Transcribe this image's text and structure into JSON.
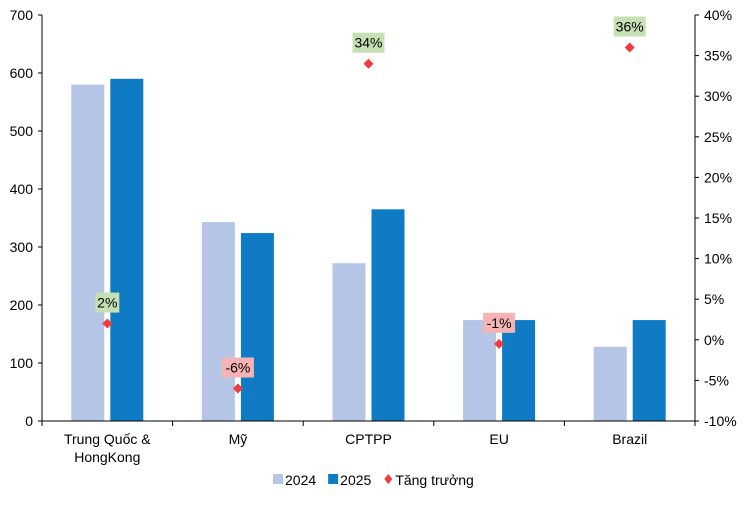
{
  "chart_data": {
    "type": "bar",
    "title": "",
    "categories": [
      "Trung Quốc & HongKong",
      "Mỹ",
      "CPTPP",
      "EU",
      "Brazil"
    ],
    "category_lines": [
      [
        "Trung Quốc &",
        "HongKong"
      ],
      [
        "Mỹ"
      ],
      [
        "CPTPP"
      ],
      [
        "EU"
      ],
      [
        "Brazil"
      ]
    ],
    "series": [
      {
        "name": "2024",
        "type": "bar",
        "axis": "left",
        "color": "#b4c5e6",
        "values": [
          580,
          343,
          272,
          174,
          128
        ]
      },
      {
        "name": "2025",
        "type": "bar",
        "axis": "left",
        "color": "#0f7bc4",
        "values": [
          590,
          324,
          365,
          174,
          174
        ]
      },
      {
        "name": "Tăng trưởng",
        "type": "scatter",
        "axis": "right",
        "color": "#f03c3c",
        "values": [
          2,
          -6,
          34,
          -0.5,
          36
        ],
        "labels": [
          "2%",
          "-6%",
          "34%",
          "-1%",
          "36%"
        ]
      }
    ],
    "label_colors": {
      "positive": "#c5e0b3",
      "negative": "#f6b3b3"
    },
    "left_axis": {
      "ylim": [
        0,
        700
      ],
      "ticks": [
        "0",
        "100",
        "200",
        "300",
        "400",
        "500",
        "600",
        "700"
      ]
    },
    "right_axis": {
      "ylim": [
        -10,
        40
      ],
      "ticks": [
        "-10%",
        "-5%",
        "0%",
        "5%",
        "10%",
        "15%",
        "20%",
        "25%",
        "30%",
        "35%",
        "40%"
      ]
    },
    "grid": false,
    "legend_position": "bottom"
  }
}
